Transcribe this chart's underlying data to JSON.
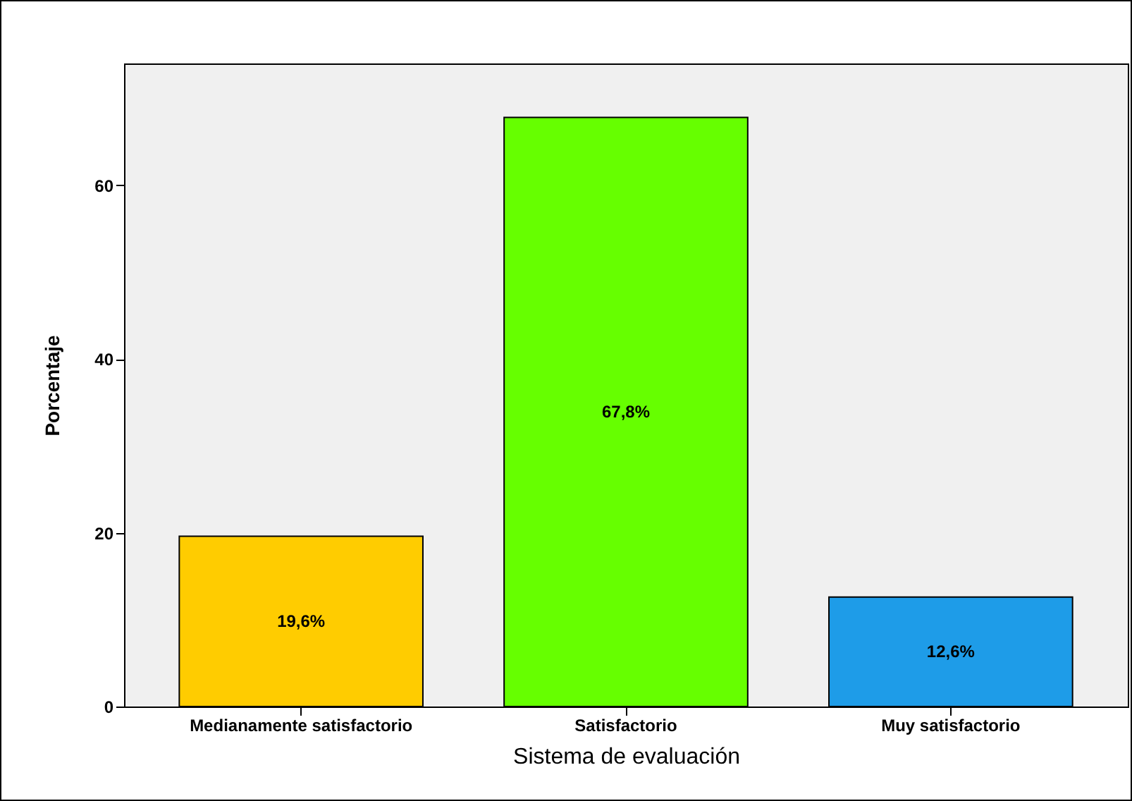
{
  "chart_data": {
    "type": "bar",
    "xlabel": "Sistema de evaluación",
    "ylabel": "Porcentaje",
    "categories": [
      "Medianamente satisfactorio",
      "Satisfactorio",
      "Muy satisfactorio"
    ],
    "values": [
      19.6,
      67.8,
      12.6
    ],
    "colors": [
      "#ffcc00",
      "#66ff00",
      "#1e9ce8"
    ],
    "value_labels": [
      "19,6%",
      "67,8%",
      "12,6%"
    ],
    "ylim": [
      0,
      74
    ],
    "yticks": [
      0,
      20,
      40,
      60
    ],
    "grid": false
  }
}
